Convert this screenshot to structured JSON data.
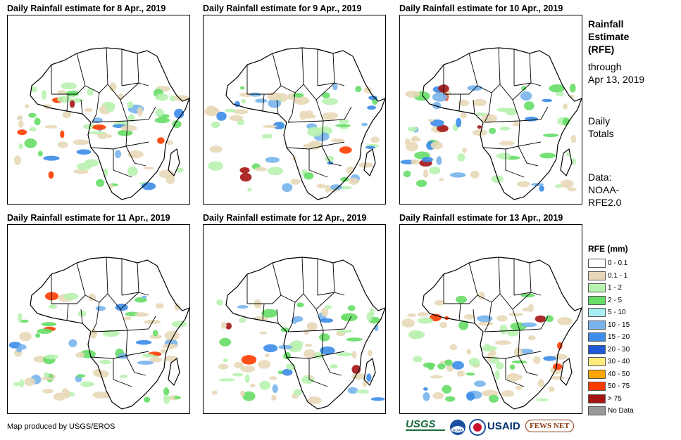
{
  "panels": [
    {
      "title": "Daily Rainfall estimate for 8 Apr., 2019",
      "day": 8
    },
    {
      "title": "Daily Rainfall estimate for 9 Apr., 2019",
      "day": 9
    },
    {
      "title": "Daily Rainfall estimate for 10 Apr., 2019",
      "day": 10
    },
    {
      "title": "Daily Rainfall estimate for 11 Apr., 2019",
      "day": 11
    },
    {
      "title": "Daily Rainfall estimate for 12 Apr., 2019",
      "day": 12
    },
    {
      "title": "Daily Rainfall estimate for 13 Apr., 2019",
      "day": 13
    }
  ],
  "side": {
    "heading": [
      "Rainfall",
      "Estimate",
      "(RFE)"
    ],
    "through": [
      "through",
      "Apr 13, 2019"
    ],
    "totals": [
      "Daily",
      "Totals"
    ],
    "source": [
      "Data:",
      "NOAA-",
      "RFE2.0"
    ]
  },
  "legend": {
    "title": "RFE (mm)",
    "items": [
      {
        "label": "0 - 0.1",
        "color": "#ffffff"
      },
      {
        "label": "0.1 - 1",
        "color": "#e8d8b8"
      },
      {
        "label": "1 - 2",
        "color": "#b8f2b0"
      },
      {
        "label": "2 - 5",
        "color": "#66dd66"
      },
      {
        "label": "5 - 10",
        "color": "#a8ecf4"
      },
      {
        "label": "10 - 15",
        "color": "#78b4ec"
      },
      {
        "label": "15 - 20",
        "color": "#3c8ce8"
      },
      {
        "label": "20 - 30",
        "color": "#1e5ad8"
      },
      {
        "label": "30 - 40",
        "color": "#ffec7a"
      },
      {
        "label": "40 - 50",
        "color": "#ffa400"
      },
      {
        "label": "50 - 75",
        "color": "#ff3c00"
      },
      {
        "label": "> 75",
        "color": "#a41414"
      },
      {
        "label": "No Data",
        "color": "#999999"
      }
    ]
  },
  "footer": {
    "credit": "Map produced by USGS/EROS",
    "logos": [
      "USGS",
      "NOAA",
      "USAID",
      "FEWS NET"
    ]
  }
}
